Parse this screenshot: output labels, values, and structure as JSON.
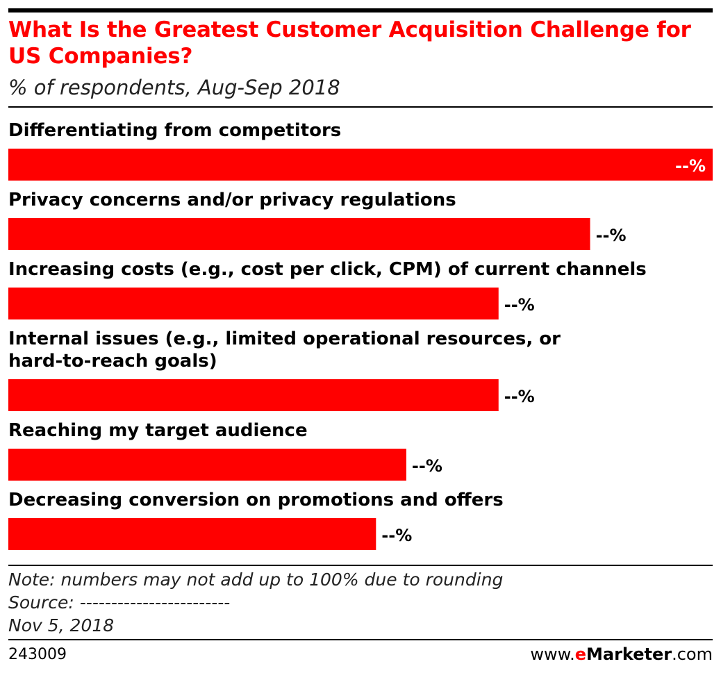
{
  "header": {
    "title": "What Is the Greatest Customer Acquisition Challenge for US Companies?",
    "subtitle": "% of respondents, Aug-Sep 2018"
  },
  "chart_data": {
    "type": "bar",
    "orientation": "horizontal",
    "categories": [
      [
        "Differentiating from competitors"
      ],
      [
        "Privacy concerns and/or privacy regulations"
      ],
      [
        "Increasing costs (e.g., cost per click, CPM) of current channels"
      ],
      [
        "Internal issues (e.g., limited operational resources, or",
        "hard-to-reach goals)"
      ],
      [
        "Reaching my target audience"
      ],
      [
        "Decreasing conversion on promotions and offers"
      ]
    ],
    "values": [
      100,
      82.6,
      69.6,
      69.6,
      56.5,
      52.2
    ],
    "value_labels": [
      "--%",
      "--%",
      "--%",
      "--%",
      "--%",
      "--%"
    ],
    "bar_color": "#ff0000",
    "grid": false,
    "legend": "none"
  },
  "footer": {
    "note": "Note: numbers may not add up to 100% due to rounding",
    "source": "Source: ------------------------",
    "date": "Nov 5, 2018",
    "chart_id": "243009",
    "brand_prefix": "www.",
    "brand_e": "e",
    "brand_name": "Marketer",
    "brand_suffix": ".com"
  }
}
